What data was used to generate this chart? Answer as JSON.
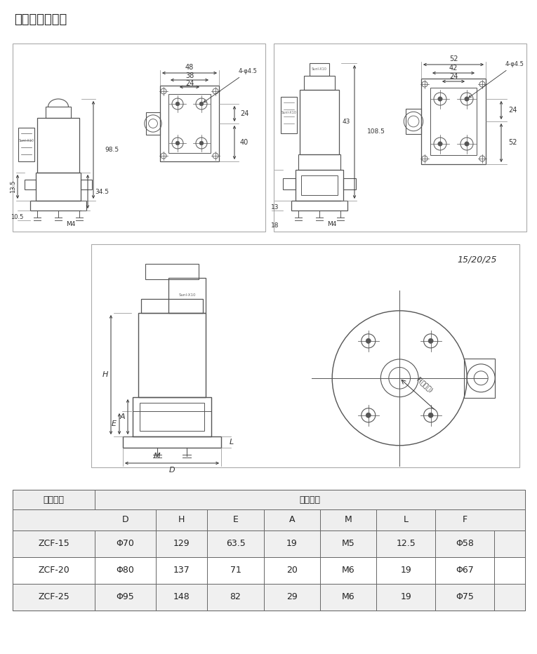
{
  "title": "结构外型尺寸图",
  "bg_color": "#ffffff",
  "line_color": "#555555",
  "dim_color": "#333333",
  "table": {
    "prod_header": "产品型号",
    "dim_header": "外形尺寸",
    "col_headers": [
      "D",
      "H",
      "E",
      "A",
      "M",
      "L",
      "F"
    ],
    "rows": [
      [
        "ZCF-15",
        "Φ70",
        "129",
        "63.5",
        "19",
        "M5",
        "12.5",
        "Φ58"
      ],
      [
        "ZCF-20",
        "Φ80",
        "137",
        "71",
        "20",
        "M6",
        "19",
        "Φ67"
      ],
      [
        "ZCF-25",
        "Φ95",
        "148",
        "82",
        "29",
        "M6",
        "19",
        "Φ75"
      ]
    ]
  }
}
